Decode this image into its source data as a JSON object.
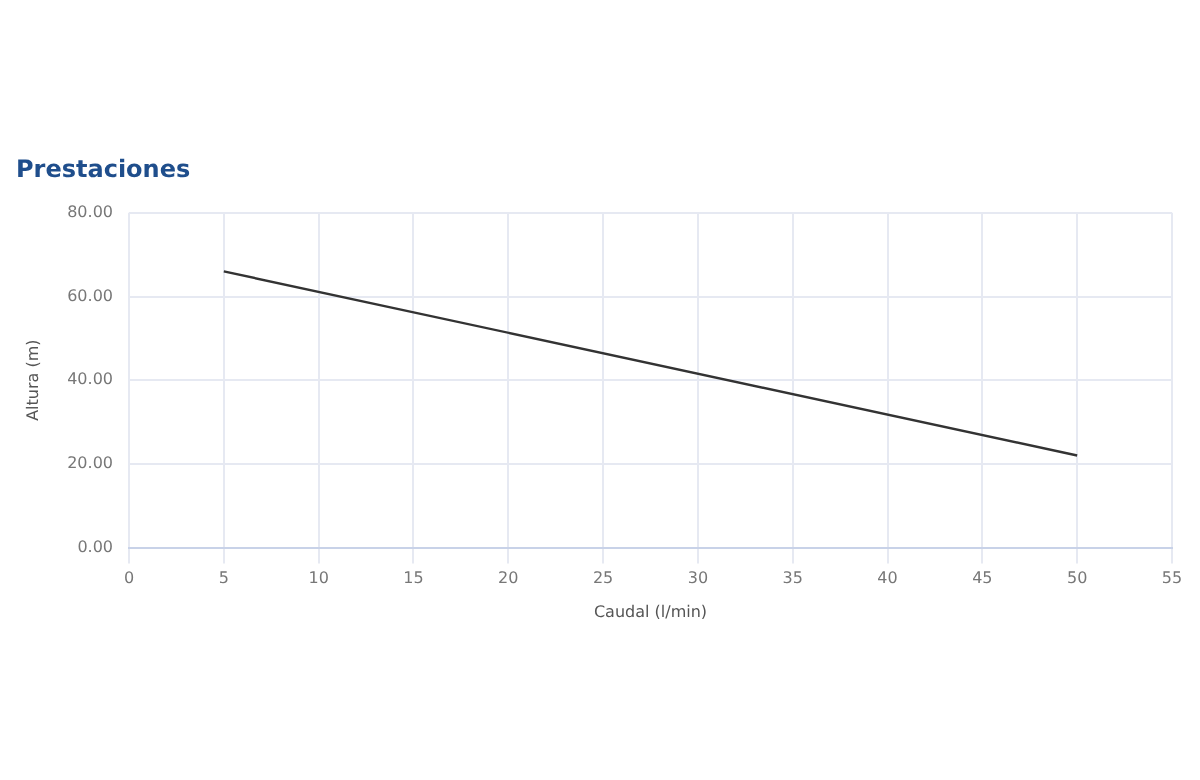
{
  "chart_data": {
    "type": "line",
    "title": "Prestaciones",
    "xlabel": "Caudal (l/min)",
    "ylabel": "Altura (m)",
    "x": [
      5,
      50
    ],
    "series": [
      {
        "color": "#333333",
        "values": [
          66,
          22
        ]
      }
    ],
    "xlim": [
      0,
      55
    ],
    "xticks": [
      0,
      5,
      10,
      15,
      20,
      25,
      30,
      35,
      40,
      45,
      50,
      55
    ],
    "ylim": [
      0,
      80
    ],
    "yticks": [
      {
        "value": 0,
        "label": "0.00"
      },
      {
        "value": 20,
        "label": "20.00"
      },
      {
        "value": 40,
        "label": "40.00"
      },
      {
        "value": 60,
        "label": "60.00"
      },
      {
        "value": 80,
        "label": "80.00"
      }
    ],
    "grid": true,
    "legend": false,
    "marker": "none",
    "line_style": "solid"
  }
}
